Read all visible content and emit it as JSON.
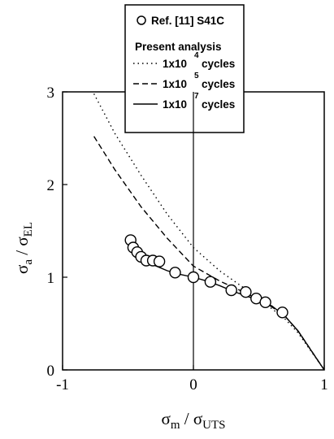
{
  "chart_data": {
    "type": "scatter",
    "title": "",
    "xlim": [
      -1,
      1
    ],
    "ylim": [
      0,
      3
    ],
    "x_ticks": [
      "-1",
      "0",
      "1"
    ],
    "y_ticks": [
      "0",
      "1",
      "2",
      "3"
    ],
    "xlabel": {
      "main": "σ",
      "sub": "m",
      "sep": " / σ",
      "sub2": "UTS"
    },
    "ylabel": {
      "main": "σ",
      "sub": "a",
      "sep": " / σ",
      "sub2": "EL"
    },
    "legend_position": "top-right",
    "legend": {
      "marker_entry": "Ref. [11]  S41C",
      "heading": "Present analysis",
      "entries": [
        {
          "base": "1x10",
          "exp": "4",
          "suffix": "cycles"
        },
        {
          "base": "1x10",
          "exp": "5",
          "suffix": "cycles"
        },
        {
          "base": "1x10",
          "exp": "7",
          "suffix": "cycles"
        }
      ]
    },
    "points": [
      {
        "x": -0.48,
        "y": 1.4
      },
      {
        "x": -0.46,
        "y": 1.32
      },
      {
        "x": -0.43,
        "y": 1.27
      },
      {
        "x": -0.4,
        "y": 1.22
      },
      {
        "x": -0.36,
        "y": 1.18
      },
      {
        "x": -0.31,
        "y": 1.18
      },
      {
        "x": -0.26,
        "y": 1.17
      },
      {
        "x": -0.14,
        "y": 1.05
      },
      {
        "x": 0.0,
        "y": 1.0
      },
      {
        "x": 0.13,
        "y": 0.95
      },
      {
        "x": 0.29,
        "y": 0.86
      },
      {
        "x": 0.4,
        "y": 0.84
      },
      {
        "x": 0.48,
        "y": 0.77
      },
      {
        "x": 0.55,
        "y": 0.73
      },
      {
        "x": 0.68,
        "y": 0.62
      }
    ],
    "series": [
      {
        "name": "1x10^4 cycles",
        "style": "dotted",
        "points": [
          [
            -0.76,
            2.98
          ],
          [
            -0.6,
            2.55
          ],
          [
            -0.4,
            2.1
          ],
          [
            -0.2,
            1.68
          ],
          [
            0.0,
            1.32
          ],
          [
            0.2,
            1.07
          ],
          [
            0.4,
            0.87
          ],
          [
            0.6,
            0.66
          ],
          [
            0.7,
            0.55
          ],
          [
            0.8,
            0.4
          ],
          [
            0.9,
            0.2
          ],
          [
            1.0,
            0.0
          ]
        ]
      },
      {
        "name": "1x10^5 cycles",
        "style": "dashed",
        "points": [
          [
            -0.76,
            2.52
          ],
          [
            -0.6,
            2.16
          ],
          [
            -0.4,
            1.76
          ],
          [
            -0.2,
            1.42
          ],
          [
            0.0,
            1.12
          ],
          [
            0.2,
            0.96
          ],
          [
            0.4,
            0.83
          ],
          [
            0.6,
            0.68
          ],
          [
            0.7,
            0.58
          ],
          [
            0.8,
            0.42
          ],
          [
            0.9,
            0.21
          ],
          [
            1.0,
            0.0
          ]
        ]
      },
      {
        "name": "1x10^7 cycles",
        "style": "solid",
        "points": [
          [
            -0.46,
            1.4
          ],
          [
            -0.4,
            1.22
          ],
          [
            -0.3,
            1.13
          ],
          [
            -0.2,
            1.07
          ],
          [
            -0.1,
            1.03
          ],
          [
            0.0,
            1.0
          ],
          [
            0.1,
            0.96
          ],
          [
            0.2,
            0.91
          ],
          [
            0.3,
            0.85
          ],
          [
            0.4,
            0.8
          ],
          [
            0.5,
            0.75
          ],
          [
            0.6,
            0.69
          ],
          [
            0.7,
            0.58
          ],
          [
            0.8,
            0.42
          ],
          [
            0.9,
            0.21
          ],
          [
            1.0,
            0.0
          ]
        ]
      }
    ]
  }
}
